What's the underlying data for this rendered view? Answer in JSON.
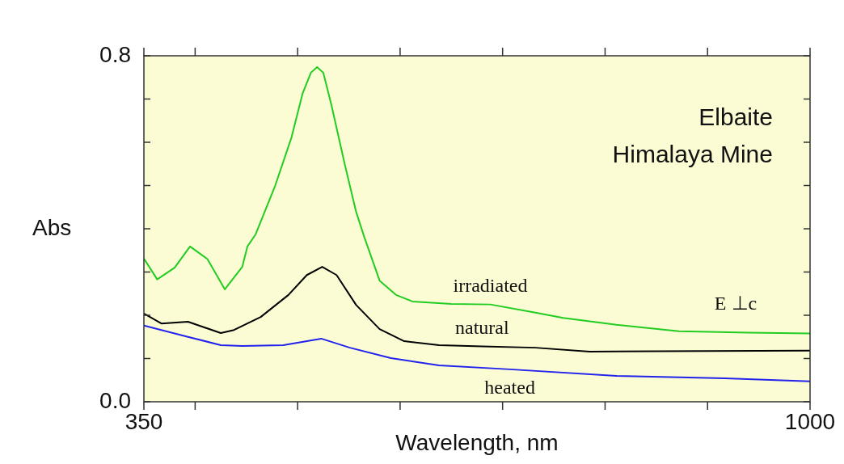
{
  "chart_data": {
    "type": "line",
    "xlabel": "Wavelength, nm",
    "ylabel": "Abs",
    "xlim": [
      350,
      1000
    ],
    "ylim": [
      0,
      0.8
    ],
    "xticks": [
      350,
      {
        "value": 400,
        "label": null
      },
      {
        "value": 500,
        "label": null
      },
      {
        "value": 600,
        "label": null
      },
      {
        "value": 700,
        "label": null
      },
      {
        "value": 800,
        "label": null
      },
      {
        "value": 900,
        "label": null
      },
      1000
    ],
    "yticks": [
      {
        "value": 0,
        "label": "0.0"
      },
      {
        "value": 0.1,
        "label": null
      },
      {
        "value": 0.2,
        "label": null
      },
      {
        "value": 0.3,
        "label": null
      },
      {
        "value": 0.4,
        "label": null
      },
      {
        "value": 0.5,
        "label": null
      },
      {
        "value": 0.6,
        "label": null
      },
      {
        "value": 0.7,
        "label": null
      },
      0.8
    ],
    "grid": false,
    "legend": false,
    "marker": "none",
    "line_style": "solid",
    "series": [
      {
        "name": "irradiated",
        "color": "#22cc22",
        "x": [
          350,
          363,
          380,
          395,
          412,
          429,
          446,
          451,
          459,
          478,
          494,
          505,
          513,
          519,
          525,
          533,
          546,
          557,
          565,
          580,
          596,
          612,
          650,
          688,
          732,
          759,
          811,
          872,
          940,
          1000
        ],
        "values": [
          0.331,
          0.283,
          0.31,
          0.359,
          0.33,
          0.26,
          0.312,
          0.359,
          0.387,
          0.499,
          0.611,
          0.714,
          0.761,
          0.774,
          0.761,
          0.686,
          0.549,
          0.44,
          0.381,
          0.28,
          0.247,
          0.232,
          0.226,
          0.225,
          0.206,
          0.194,
          0.178,
          0.163,
          0.16,
          0.158
        ]
      },
      {
        "name": "natural",
        "color": "#000000",
        "x": [
          350,
          367,
          393,
          425,
          438,
          464,
          491,
          509,
          524,
          538,
          557,
          580,
          604,
          638,
          680,
          732,
          785,
          850,
          1000
        ],
        "values": [
          0.204,
          0.181,
          0.185,
          0.159,
          0.166,
          0.196,
          0.247,
          0.293,
          0.312,
          0.293,
          0.224,
          0.168,
          0.14,
          0.131,
          0.128,
          0.125,
          0.116,
          0.117,
          0.118
        ]
      },
      {
        "name": "heated",
        "color": "#2222ee",
        "x": [
          350,
          393,
          425,
          446,
          486,
          523,
          551,
          591,
          638,
          707,
          811,
          917,
          1000
        ],
        "values": [
          0.176,
          0.15,
          0.131,
          0.129,
          0.131,
          0.146,
          0.125,
          0.101,
          0.084,
          0.075,
          0.06,
          0.054,
          0.047
        ]
      }
    ],
    "annotations": [
      "Elbaite",
      "Himalaya Mine",
      "E ⊥c"
    ]
  }
}
